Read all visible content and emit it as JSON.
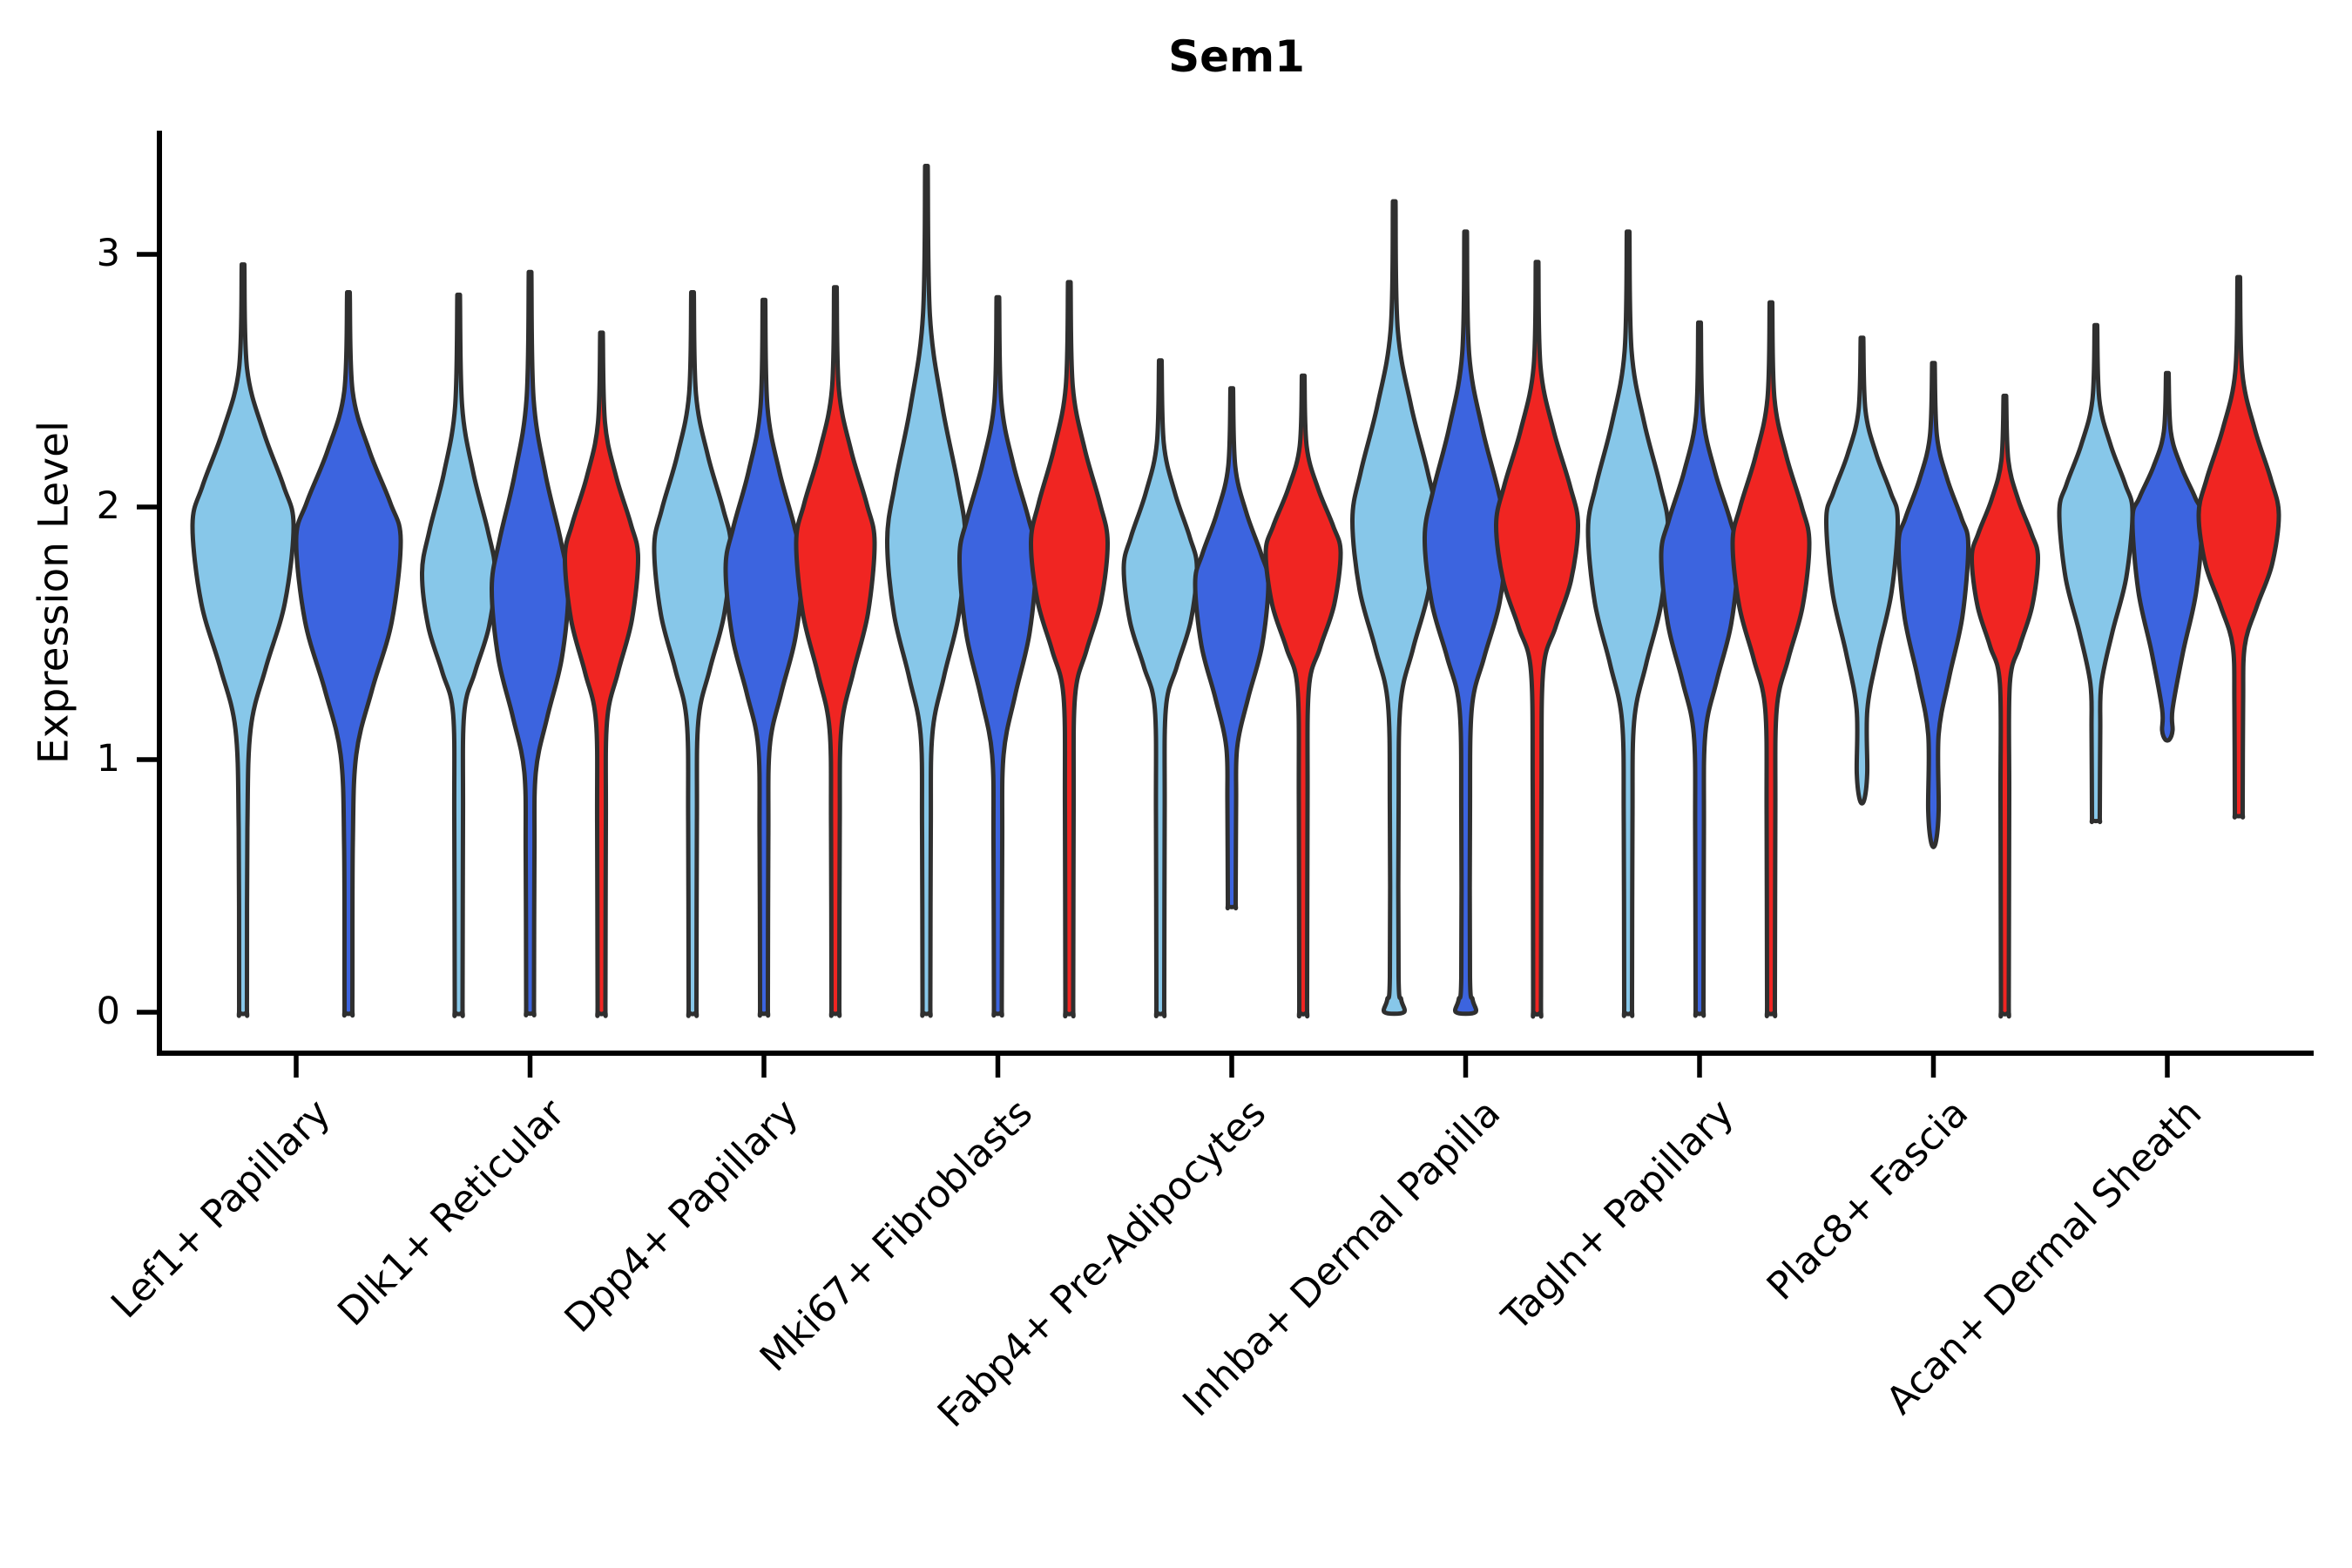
{
  "title": "Sem1",
  "ylabel": "Expression Level",
  "ytick_labels": [
    "0",
    "1",
    "2",
    "3"
  ],
  "colors": {
    "hue_light_blue": "#87C7E9",
    "hue_royal_blue": "#3C64DF",
    "hue_red": "#F02522",
    "outline": "#2F2F2F",
    "axis": "#000000",
    "background": "#ffffff"
  },
  "chart_data": {
    "type": "violin",
    "title": "Sem1",
    "xlabel": "",
    "ylabel": "Expression Level",
    "ylim": [
      -0.16,
      3.49
    ],
    "yticks": [
      0,
      1,
      2,
      3
    ],
    "grid": false,
    "legend": "none",
    "hue_colors": [
      "#87C7E9",
      "#3C64DF",
      "#F02522"
    ],
    "categories": [
      "Lef1+ Papillary",
      "Dlk1+ Reticular",
      "Dpp4+ Papillary",
      "Mki67+ Fibroblasts",
      "Fabp4+ Pre-Adipocytes",
      "Inhba+ Dermal Papilla",
      "Tagln+ Papillary",
      "Plac8+ Fascia",
      "Acan+ Dermal Sheath"
    ],
    "groups": [
      {
        "category": "Lef1+ Papillary",
        "violins": [
          {
            "color": "#87C7E9",
            "offset": -61,
            "top": 2.96,
            "bottom": 0,
            "mode": 1.93,
            "halfwidth": 58,
            "stem": true,
            "waist": 1.12
          },
          {
            "color": "#3C64DF",
            "offset": 60,
            "top": 2.85,
            "bottom": 0,
            "mode": 1.87,
            "halfwidth": 60,
            "stem": true,
            "waist": 1.02
          }
        ]
      },
      {
        "category": "Dlk1+ Reticular",
        "violins": [
          {
            "color": "#87C7E9",
            "offset": -82,
            "top": 2.84,
            "bottom": 0,
            "mode": 1.74,
            "halfwidth": 42,
            "stem": true,
            "waist": 1.18
          },
          {
            "color": "#3C64DF",
            "offset": 0,
            "top": 2.93,
            "bottom": 0,
            "mode": 1.68,
            "halfwidth": 44,
            "stem": true,
            "waist": 0.95
          },
          {
            "color": "#F02522",
            "offset": 82,
            "top": 2.69,
            "bottom": 0,
            "mode": 1.8,
            "halfwidth": 42,
            "stem": true,
            "waist": 1.15
          }
        ]
      },
      {
        "category": "Dpp4+ Papillary",
        "violins": [
          {
            "color": "#87C7E9",
            "offset": -82,
            "top": 2.85,
            "bottom": 0,
            "mode": 1.84,
            "halfwidth": 44,
            "stem": true,
            "waist": 1.15
          },
          {
            "color": "#3C64DF",
            "offset": 0,
            "top": 2.82,
            "bottom": 0,
            "mode": 1.76,
            "halfwidth": 44,
            "stem": true,
            "waist": 1.05
          },
          {
            "color": "#F02522",
            "offset": 82,
            "top": 2.87,
            "bottom": 0,
            "mode": 1.86,
            "halfwidth": 45,
            "stem": true,
            "waist": 1.12
          }
        ]
      },
      {
        "category": "Mki67+ Fibroblasts",
        "violins": [
          {
            "color": "#87C7E9",
            "offset": -82,
            "top": 3.35,
            "bottom": 0,
            "mode": 1.87,
            "halfwidth": 45,
            "stem": true,
            "waist": 1.1
          },
          {
            "color": "#3C64DF",
            "offset": 0,
            "top": 2.83,
            "bottom": 0,
            "mode": 1.8,
            "halfwidth": 44,
            "stem": true,
            "waist": 1.02
          },
          {
            "color": "#F02522",
            "offset": 82,
            "top": 2.89,
            "bottom": 0,
            "mode": 1.86,
            "halfwidth": 44,
            "stem": true,
            "waist": 1.25
          }
        ]
      },
      {
        "category": "Fabp4+ Pre-Adipocytes",
        "violins": [
          {
            "color": "#87C7E9",
            "offset": -82,
            "top": 2.58,
            "bottom": 0,
            "mode": 1.76,
            "halfwidth": 42,
            "stem": true,
            "waist": 1.2
          },
          {
            "color": "#3C64DF",
            "offset": 0,
            "top": 2.47,
            "bottom": 0.42,
            "mode": 1.7,
            "halfwidth": 42,
            "stem": true,
            "waist": 1.05
          },
          {
            "color": "#F02522",
            "offset": 82,
            "top": 2.52,
            "bottom": 0,
            "mode": 1.82,
            "halfwidth": 43,
            "stem": true,
            "waist": 1.28
          }
        ]
      },
      {
        "category": "Inhba+ Dermal Papilla",
        "violins": [
          {
            "color": "#87C7E9",
            "offset": -82,
            "top": 3.21,
            "bottom": 0,
            "mode": 1.95,
            "halfwidth": 48,
            "stem": true,
            "waist": 1.22,
            "bump": true
          },
          {
            "color": "#3C64DF",
            "offset": 0,
            "top": 3.09,
            "bottom": 0,
            "mode": 1.88,
            "halfwidth": 47,
            "stem": true,
            "waist": 1.2,
            "bump": true
          },
          {
            "color": "#F02522",
            "offset": 82,
            "top": 2.97,
            "bottom": 0,
            "mode": 1.93,
            "halfwidth": 47,
            "stem": true,
            "waist": 1.35
          }
        ]
      },
      {
        "category": "Tagln+ Papillary",
        "violins": [
          {
            "color": "#87C7E9",
            "offset": -82,
            "top": 3.09,
            "bottom": 0,
            "mode": 1.91,
            "halfwidth": 46,
            "stem": true,
            "waist": 1.15
          },
          {
            "color": "#3C64DF",
            "offset": 0,
            "top": 2.73,
            "bottom": 0,
            "mode": 1.81,
            "halfwidth": 44,
            "stem": true,
            "waist": 1.1
          },
          {
            "color": "#F02522",
            "offset": 82,
            "top": 2.81,
            "bottom": 0,
            "mode": 1.86,
            "halfwidth": 44,
            "stem": true,
            "waist": 1.2
          }
        ]
      },
      {
        "category": "Plac8+ Fascia",
        "violins": [
          {
            "color": "#87C7E9",
            "offset": -82,
            "top": 2.67,
            "bottom": 0.84,
            "mode": 1.95,
            "halfwidth": 41,
            "stem": false
          },
          {
            "color": "#3C64DF",
            "offset": 0,
            "top": 2.57,
            "bottom": 0.67,
            "mode": 1.85,
            "halfwidth": 40,
            "stem": false
          },
          {
            "color": "#F02522",
            "offset": 82,
            "top": 2.44,
            "bottom": 0,
            "mode": 1.8,
            "halfwidth": 38,
            "stem": true,
            "waist": 1.3
          }
        ]
      },
      {
        "category": "Acan+ Dermal Sheath",
        "violins": [
          {
            "color": "#87C7E9",
            "offset": -82,
            "top": 2.72,
            "bottom": 0.76,
            "mode": 1.98,
            "halfwidth": 42,
            "stem": true,
            "waist": 1.3
          },
          {
            "color": "#3C64DF",
            "offset": 0,
            "top": 2.53,
            "bottom": 1.08,
            "mode": 1.95,
            "halfwidth": 40,
            "stem": false
          },
          {
            "color": "#F02522",
            "offset": 82,
            "top": 2.91,
            "bottom": 0.78,
            "mode": 1.97,
            "halfwidth": 46,
            "stem": true,
            "waist": 1.45
          }
        ]
      }
    ]
  }
}
